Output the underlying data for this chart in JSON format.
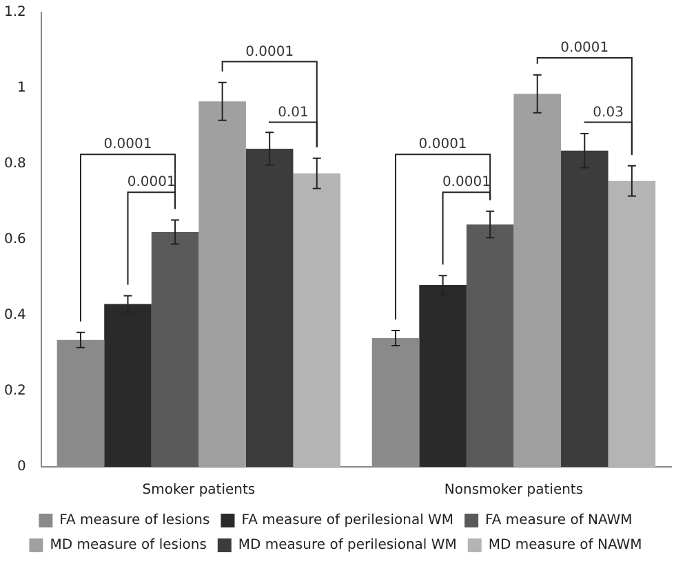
{
  "chart_data": {
    "type": "bar",
    "categories": [
      "Smoker patients",
      "Nonsmoker patients"
    ],
    "series": [
      {
        "name": "FA measure of lesions",
        "color": "#8a8a8a",
        "values": [
          0.335,
          0.34
        ],
        "errors": [
          0.02,
          0.02
        ]
      },
      {
        "name": "FA measure of perilesional WM",
        "color": "#2a2a2a",
        "values": [
          0.43,
          0.48
        ],
        "errors": [
          0.022,
          0.025
        ]
      },
      {
        "name": "FA measure of NAWM",
        "color": "#5a5a5a",
        "values": [
          0.62,
          0.64
        ],
        "errors": [
          0.032,
          0.035
        ]
      },
      {
        "name": "MD measure of lesions",
        "color": "#a0a0a0",
        "values": [
          0.965,
          0.985
        ],
        "errors": [
          0.05,
          0.05
        ]
      },
      {
        "name": "MD measure of perilesional WM",
        "color": "#3c3c3c",
        "values": [
          0.84,
          0.835
        ],
        "errors": [
          0.043,
          0.045
        ]
      },
      {
        "name": "MD measure of NAWM",
        "color": "#b4b4b4",
        "values": [
          0.775,
          0.755
        ],
        "errors": [
          0.04,
          0.04
        ]
      }
    ],
    "ylim": [
      0,
      1.2
    ],
    "yticks": [
      0,
      0.2,
      0.4,
      0.6,
      0.8,
      1,
      1.2
    ],
    "grid": false,
    "legend": "bottom",
    "annotations": [
      "0.0001",
      "0.0001",
      "0.0001",
      "0.01",
      "0.0001",
      "0.0001",
      "0.0001",
      "0.03"
    ]
  }
}
